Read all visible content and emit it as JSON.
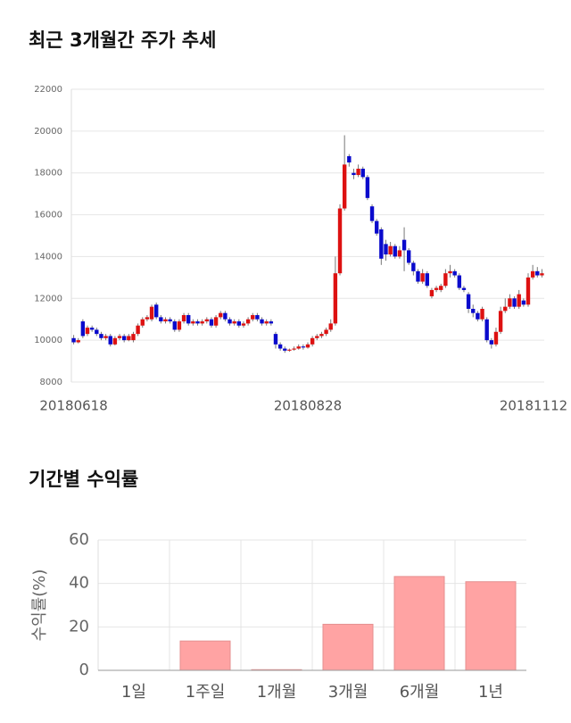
{
  "chart_data": [
    {
      "type": "candlestick",
      "title": "최근 3개월간 주가 추세",
      "categories": [
        "20180618",
        null,
        null,
        null,
        null,
        null,
        null,
        null,
        null,
        null,
        null,
        null,
        null,
        null,
        null,
        null,
        null,
        null,
        null,
        null,
        null,
        null,
        null,
        null,
        null,
        null,
        null,
        null,
        null,
        null,
        null,
        null,
        null,
        null,
        null,
        null,
        null,
        null,
        null,
        null,
        null,
        null,
        null,
        null,
        null,
        null,
        null,
        null,
        null,
        null,
        null,
        "20180828",
        null,
        null,
        null,
        null,
        null,
        null,
        null,
        null,
        null,
        null,
        null,
        null,
        null,
        null,
        null,
        null,
        null,
        null,
        null,
        null,
        null,
        null,
        null,
        null,
        null,
        null,
        null,
        null,
        null,
        null,
        null,
        null,
        null,
        null,
        null,
        null,
        null,
        null,
        null,
        null,
        null,
        null,
        null,
        null,
        null,
        null,
        null,
        null,
        null,
        null,
        "20181112"
      ],
      "open": [
        10100,
        9900,
        10900,
        10300,
        10600,
        10500,
        10300,
        10100,
        10200,
        9800,
        10100,
        10200,
        10000,
        10000,
        10300,
        10700,
        11000,
        11000,
        11700,
        11100,
        10900,
        11000,
        10900,
        10500,
        10900,
        11200,
        10800,
        10900,
        10800,
        10900,
        11000,
        10700,
        11100,
        11300,
        11000,
        10800,
        10900,
        10700,
        10800,
        11000,
        11200,
        11000,
        10800,
        10900,
        10300,
        9800,
        9600,
        9500,
        9550,
        9600,
        9700,
        9650,
        9800,
        10100,
        10200,
        10300,
        10500,
        10800,
        13200,
        16300,
        18800,
        18000,
        17900,
        18200,
        17800,
        16400,
        15700,
        15300,
        14600,
        14100,
        14500,
        14000,
        14800,
        14300,
        13700,
        13300,
        12800,
        13200,
        12100,
        12400,
        12400,
        12600,
        13200,
        13300,
        13100,
        12500,
        12200,
        11500,
        11300,
        11000,
        11000,
        10000,
        9800,
        10400,
        11400,
        11600,
        12000,
        11600,
        11900,
        11700,
        13000,
        13300,
        13100
      ],
      "high": [
        10250,
        10100,
        11000,
        10700,
        10700,
        10600,
        10400,
        10300,
        10300,
        10200,
        10300,
        10300,
        10300,
        10400,
        10800,
        11100,
        11200,
        11700,
        11800,
        11200,
        11100,
        11100,
        11000,
        11000,
        11300,
        11300,
        11000,
        11000,
        11000,
        11100,
        11100,
        11200,
        11400,
        11400,
        11100,
        11000,
        11000,
        10900,
        11100,
        11300,
        11300,
        11100,
        11000,
        11000,
        10400,
        9900,
        9700,
        9600,
        9700,
        9800,
        9800,
        9900,
        10200,
        10300,
        10400,
        10600,
        11000,
        14000,
        16500,
        19800,
        18900,
        18200,
        18400,
        18300,
        17900,
        16500,
        15800,
        15400,
        14800,
        14700,
        14600,
        14500,
        15400,
        14400,
        13800,
        13400,
        13400,
        13300,
        12500,
        12600,
        12700,
        13400,
        13600,
        13400,
        13200,
        12600,
        12300,
        11700,
        11400,
        11600,
        11100,
        10100,
        10600,
        11600,
        12000,
        12200,
        12100,
        12400,
        12000,
        13200,
        13600,
        13500,
        13400
      ],
      "low": [
        9800,
        9850,
        10100,
        10200,
        10400,
        10200,
        10000,
        10000,
        9700,
        9750,
        10000,
        9900,
        9950,
        9900,
        10200,
        10600,
        10900,
        10900,
        11000,
        10800,
        10800,
        10800,
        10400,
        10400,
        10800,
        10700,
        10700,
        10700,
        10700,
        10800,
        10600,
        10600,
        11000,
        10900,
        10700,
        10700,
        10600,
        10600,
        10700,
        10900,
        10900,
        10700,
        10700,
        10700,
        9600,
        9500,
        9400,
        9450,
        9500,
        9550,
        9550,
        9600,
        9700,
        10000,
        10100,
        10200,
        10400,
        10700,
        13100,
        16200,
        18300,
        17700,
        17800,
        17700,
        16700,
        15600,
        15000,
        13600,
        13800,
        14000,
        13900,
        13900,
        13300,
        13600,
        13100,
        12700,
        12700,
        12500,
        12000,
        12300,
        12300,
        12500,
        13000,
        13000,
        12400,
        12300,
        11300,
        11100,
        10900,
        10900,
        9900,
        9600,
        9700,
        10300,
        11300,
        11500,
        11500,
        11500,
        11600,
        11600,
        12900,
        13000,
        13000
      ],
      "close": [
        9900,
        10000,
        10200,
        10600,
        10500,
        10300,
        10100,
        10200,
        9800,
        10100,
        10200,
        10000,
        10200,
        10300,
        10700,
        11000,
        11100,
        11600,
        11100,
        10900,
        11000,
        10900,
        10500,
        10900,
        11200,
        10800,
        10900,
        10800,
        10900,
        11000,
        10700,
        11100,
        11300,
        11000,
        10800,
        10900,
        10700,
        10800,
        11000,
        11200,
        11000,
        10800,
        10900,
        10800,
        9800,
        9600,
        9500,
        9550,
        9600,
        9700,
        9650,
        9800,
        10100,
        10200,
        10300,
        10500,
        10800,
        13200,
        16300,
        18400,
        18500,
        17900,
        18200,
        17800,
        16800,
        15700,
        15100,
        13900,
        14100,
        14500,
        14000,
        14300,
        14300,
        13700,
        13300,
        12800,
        13200,
        12600,
        12400,
        12500,
        12600,
        13200,
        13300,
        13100,
        12500,
        12400,
        11500,
        11300,
        11000,
        11500,
        10000,
        9800,
        10400,
        11400,
        11600,
        12000,
        11600,
        12200,
        11700,
        13000,
        13300,
        13100,
        13200
      ],
      "up_color": "#dd1111",
      "down_color": "#0a0acc",
      "ylim": [
        8000,
        22000
      ],
      "yticks": [
        8000,
        10000,
        12000,
        14000,
        16000,
        18000,
        20000,
        22000
      ],
      "grid": true
    },
    {
      "type": "bar",
      "title": "기간별 수익률",
      "ylabel": "수익률(%)",
      "categories": [
        "1일",
        "1주일",
        "1개월",
        "3개월",
        "6개월",
        "1년"
      ],
      "values": [
        0,
        13.5,
        0.3,
        21.2,
        43.2,
        40.8
      ],
      "color": "#ffa3a3",
      "ylim": [
        0,
        60
      ],
      "yticks": [
        0,
        20,
        40,
        60
      ],
      "grid": true
    }
  ]
}
